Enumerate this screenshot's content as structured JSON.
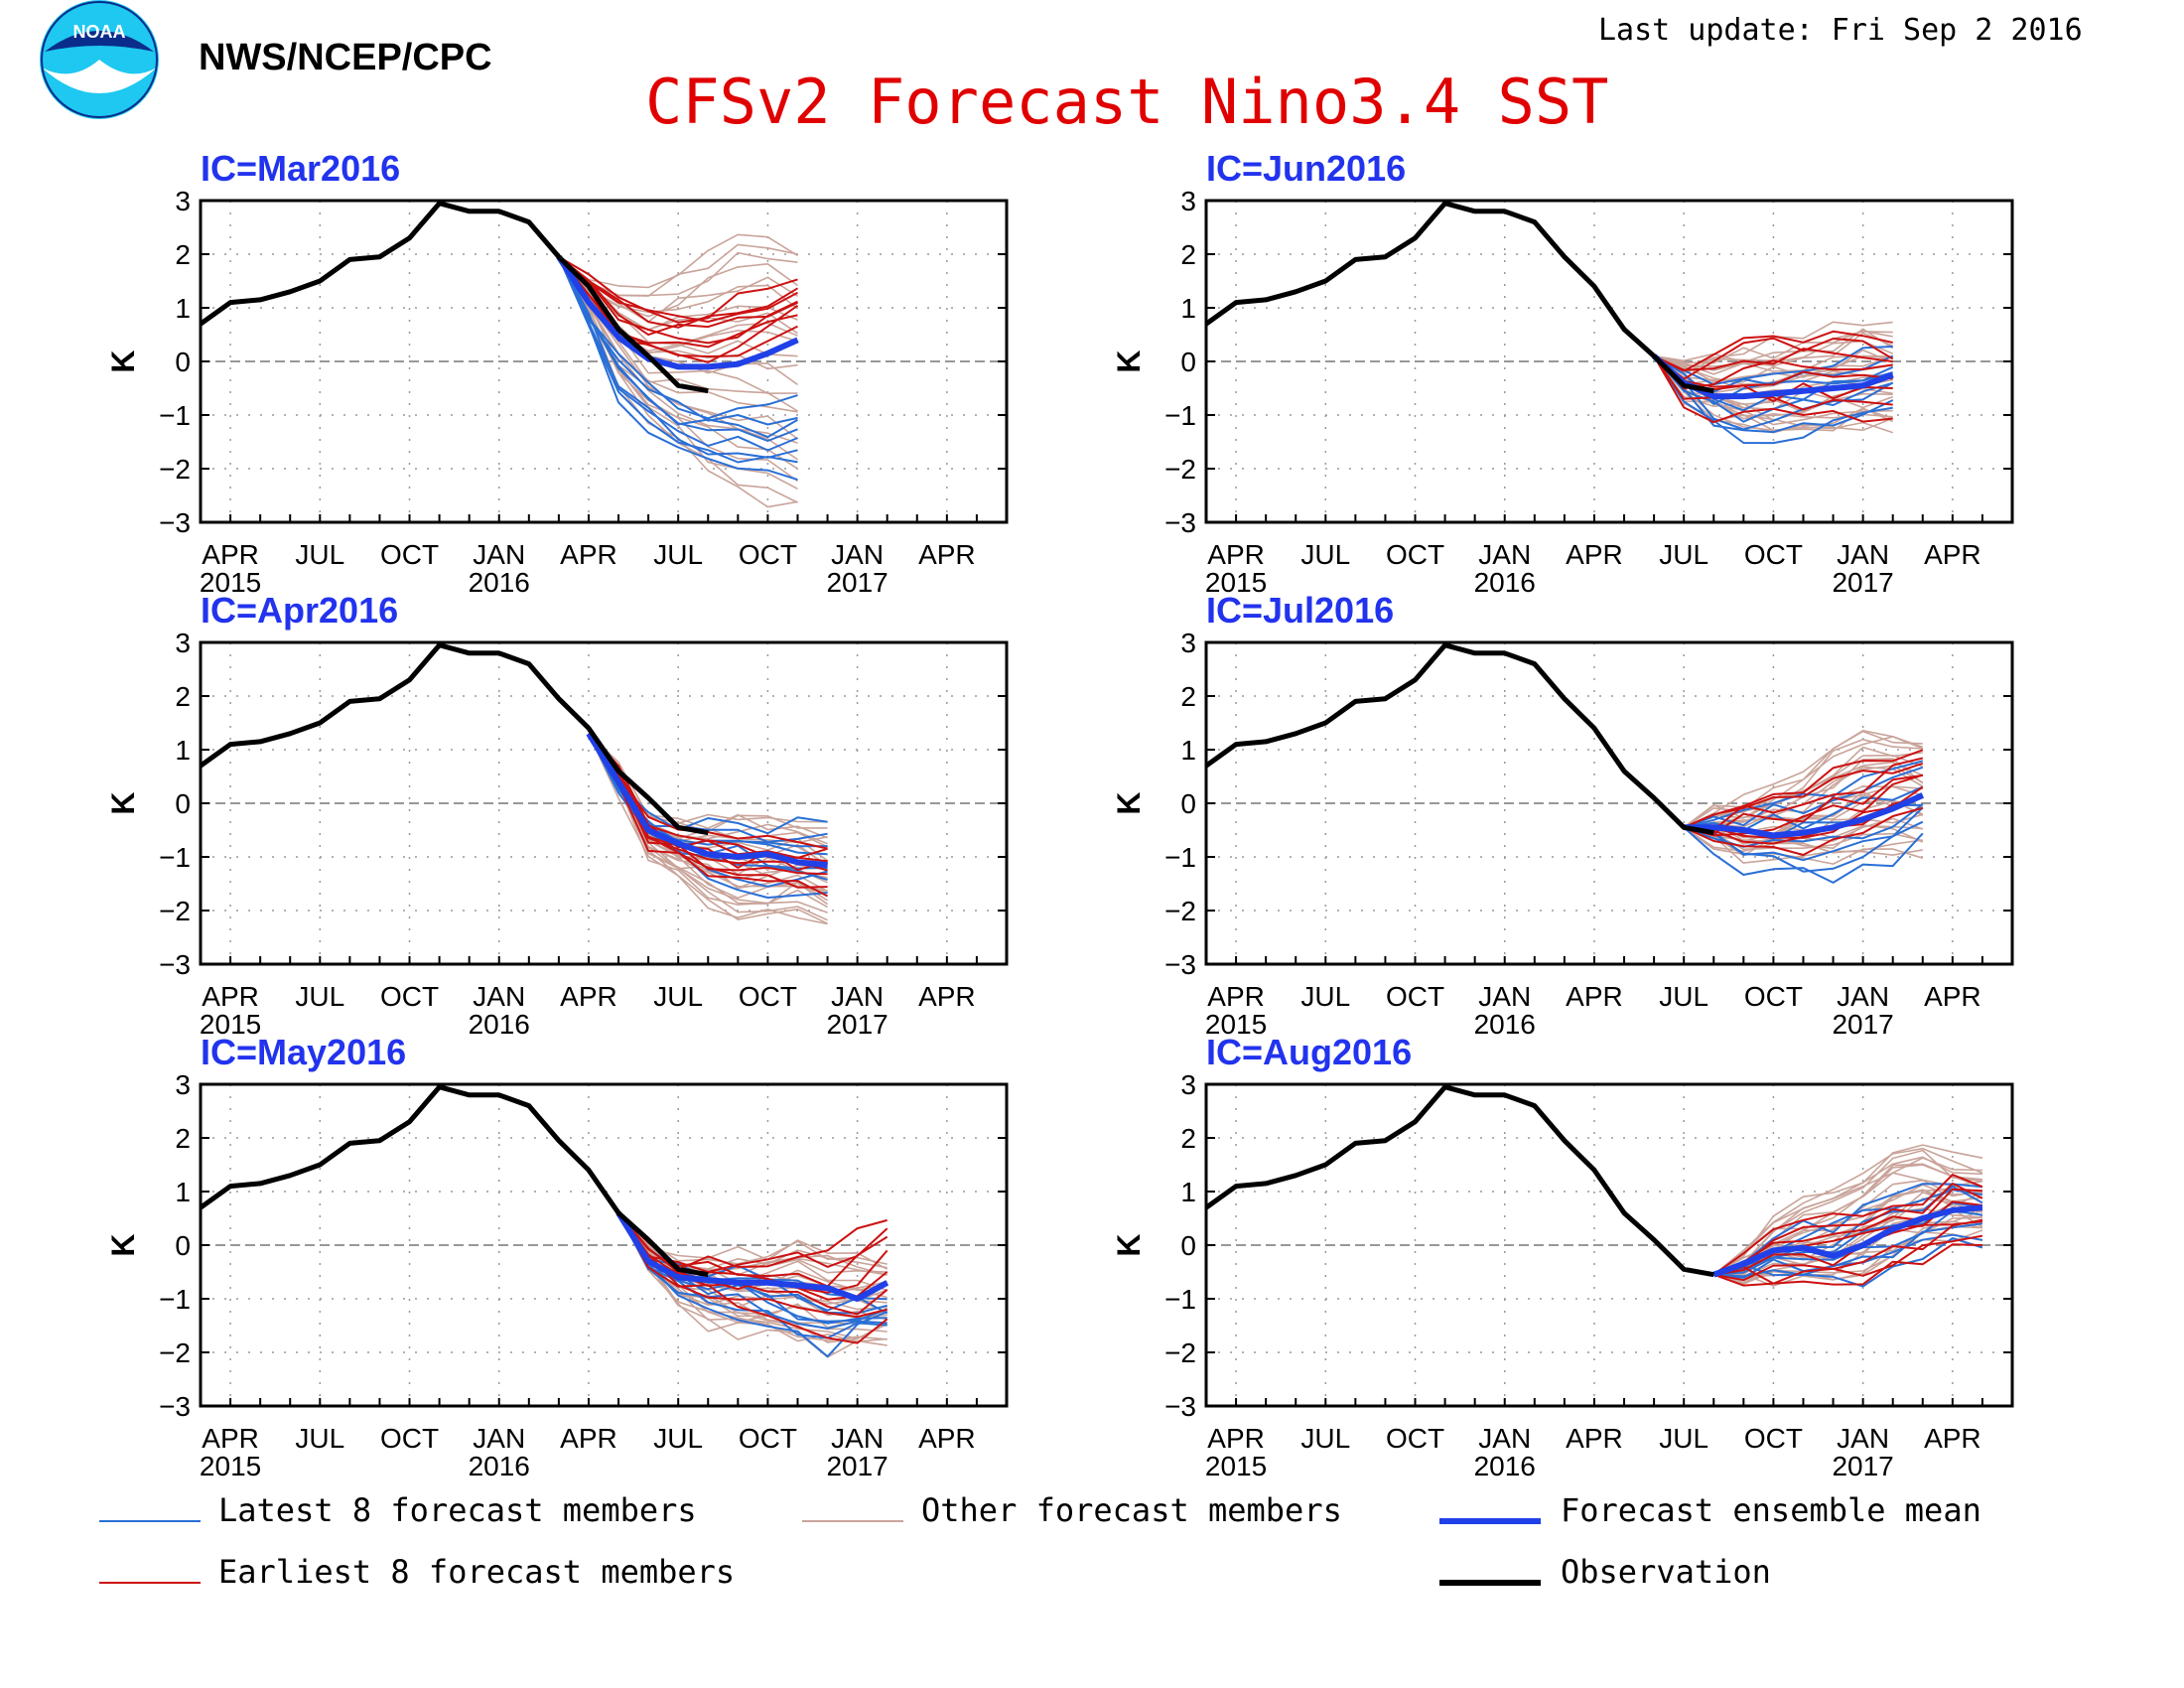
{
  "header": {
    "org": "NWS/NCEP/CPC",
    "last_update": "Last update: Fri Sep 2 2016",
    "title": "CFSv2 Forecast Nino3.4 SST",
    "logo_text": "NOAA"
  },
  "colors": {
    "title": "#e00000",
    "ic_label": "#2233ee",
    "latest_members": "#2a6fd6",
    "other_members": "#c9a49a",
    "earliest_members": "#cc1111",
    "ensemble_mean": "#2040e8",
    "observation": "#000000"
  },
  "legend": [
    {
      "label": "Latest 8 forecast members",
      "series": "latest"
    },
    {
      "label": "Other forecast members",
      "series": "other"
    },
    {
      "label": "Forecast ensemble mean",
      "series": "mean"
    },
    {
      "label": "Earliest 8 forecast members",
      "series": "earliest"
    },
    {
      "label": "Observation",
      "series": "obs"
    }
  ],
  "chart_data": {
    "type": "line",
    "ylabel": "K",
    "ylim": [
      -3,
      3
    ],
    "yticks": [
      "3",
      "2",
      "1",
      "0",
      "−1",
      "−2",
      "−3"
    ],
    "x_range": [
      "2015-03",
      "2017-06"
    ],
    "x_tick_labels": [
      {
        "month": "APR",
        "year": "2015",
        "date": "2015-04"
      },
      {
        "month": "JUL",
        "year": "",
        "date": "2015-07"
      },
      {
        "month": "OCT",
        "year": "",
        "date": "2015-10"
      },
      {
        "month": "JAN",
        "year": "2016",
        "date": "2016-01"
      },
      {
        "month": "APR",
        "year": "",
        "date": "2016-04"
      },
      {
        "month": "JUL",
        "year": "",
        "date": "2016-07"
      },
      {
        "month": "OCT",
        "year": "",
        "date": "2016-10"
      },
      {
        "month": "JAN",
        "year": "2017",
        "date": "2017-01"
      },
      {
        "month": "APR",
        "year": "",
        "date": "2017-04"
      }
    ],
    "observation": {
      "dates": [
        "2015-03",
        "2015-04",
        "2015-05",
        "2015-06",
        "2015-07",
        "2015-08",
        "2015-09",
        "2015-10",
        "2015-11",
        "2015-12",
        "2016-01",
        "2016-02",
        "2016-03",
        "2016-04",
        "2016-05",
        "2016-06",
        "2016-07",
        "2016-08"
      ],
      "values": [
        0.7,
        1.1,
        1.15,
        1.3,
        1.5,
        1.9,
        1.95,
        2.3,
        2.95,
        2.8,
        2.8,
        2.6,
        1.95,
        1.4,
        0.6,
        0.1,
        -0.45,
        -0.55
      ]
    },
    "panels": [
      {
        "ic_label": "IC=Mar2016",
        "forecast_start": "2016-03",
        "obs_end": "2016-08",
        "mean": [
          1.95,
          1.1,
          0.45,
          0.05,
          -0.1,
          -0.1,
          -0.05,
          0.15,
          0.4
        ],
        "latest_upper": [
          1.95,
          0.9,
          0.0,
          -0.5,
          -0.8,
          -1.0,
          -1.0,
          -0.9,
          -0.7
        ],
        "latest_lower": [
          1.95,
          0.6,
          -0.6,
          -1.2,
          -1.6,
          -1.8,
          -1.95,
          -2.1,
          -2.25
        ],
        "earliest_upper": [
          1.95,
          1.5,
          1.2,
          1.0,
          0.9,
          0.95,
          1.1,
          1.25,
          1.5
        ],
        "earliest_lower": [
          1.95,
          1.3,
          0.5,
          0.2,
          0.0,
          0.0,
          0.2,
          0.5,
          0.8
        ],
        "other_upper": [
          1.95,
          1.6,
          1.4,
          1.3,
          1.6,
          2.0,
          2.3,
          2.4,
          2.1
        ],
        "other_lower": [
          1.95,
          0.9,
          -0.4,
          -1.2,
          -1.6,
          -2.1,
          -2.4,
          -2.6,
          -2.75
        ]
      },
      {
        "ic_label": "IC=Jun2016",
        "forecast_start": "2016-06",
        "obs_end": "2016-08",
        "mean": [
          0.1,
          -0.4,
          -0.65,
          -0.65,
          -0.6,
          -0.55,
          -0.5,
          -0.45,
          -0.25
        ],
        "latest_upper": [
          0.1,
          -0.2,
          -0.4,
          -0.3,
          -0.2,
          -0.1,
          0.0,
          0.1,
          0.2
        ],
        "latest_lower": [
          0.1,
          -0.6,
          -1.2,
          -1.5,
          -1.5,
          -1.35,
          -1.2,
          -1.1,
          -0.8
        ],
        "earliest_upper": [
          0.1,
          -0.1,
          0.1,
          0.4,
          0.5,
          0.5,
          0.55,
          0.5,
          0.4
        ],
        "earliest_lower": [
          0.1,
          -0.8,
          -1.0,
          -1.0,
          -1.0,
          -1.0,
          -1.0,
          -0.95,
          -1.0
        ],
        "other_upper": [
          0.1,
          0.0,
          0.2,
          0.2,
          0.3,
          0.4,
          0.6,
          0.7,
          0.6
        ],
        "other_lower": [
          0.1,
          -0.7,
          -1.1,
          -1.3,
          -1.4,
          -1.4,
          -1.3,
          -1.2,
          -1.2
        ]
      },
      {
        "ic_label": "IC=Apr2016",
        "forecast_start": "2016-04",
        "obs_end": "2016-08",
        "mean": [
          1.3,
          0.4,
          -0.5,
          -0.75,
          -0.95,
          -1.0,
          -0.95,
          -1.1,
          -1.15
        ],
        "latest_upper": [
          1.3,
          0.5,
          -0.3,
          -0.4,
          -0.4,
          -0.2,
          -0.4,
          -0.4,
          -0.4
        ],
        "latest_lower": [
          1.3,
          0.3,
          -0.6,
          -1.0,
          -1.3,
          -1.5,
          -1.6,
          -1.7,
          -1.6
        ],
        "earliest_upper": [
          1.3,
          0.6,
          -0.3,
          -0.5,
          -0.6,
          -0.7,
          -0.6,
          -0.8,
          -0.9
        ],
        "earliest_lower": [
          1.3,
          0.4,
          -0.8,
          -1.1,
          -1.3,
          -1.5,
          -1.5,
          -1.6,
          -1.7
        ],
        "other_upper": [
          1.3,
          0.6,
          -0.2,
          -0.3,
          -0.3,
          -0.2,
          -0.3,
          -0.3,
          -0.4
        ],
        "other_lower": [
          1.3,
          0.2,
          -1.0,
          -1.5,
          -1.8,
          -2.2,
          -2.1,
          -2.0,
          -2.3
        ]
      },
      {
        "ic_label": "IC=Jul2016",
        "forecast_start": "2016-07",
        "obs_end": "2016-08",
        "mean": [
          -0.45,
          -0.45,
          -0.5,
          -0.6,
          -0.55,
          -0.45,
          -0.3,
          -0.1,
          0.15
        ],
        "latest_upper": [
          -0.45,
          -0.2,
          -0.1,
          0.0,
          0.1,
          0.2,
          0.4,
          0.6,
          0.7
        ],
        "latest_lower": [
          -0.45,
          -0.8,
          -1.2,
          -1.2,
          -1.3,
          -1.35,
          -1.2,
          -1.0,
          -0.6
        ],
        "earliest_upper": [
          -0.45,
          -0.2,
          0.0,
          0.3,
          0.3,
          0.7,
          0.8,
          0.9,
          1.0
        ],
        "earliest_lower": [
          -0.45,
          -0.7,
          -0.7,
          -0.8,
          -0.8,
          -0.8,
          -0.7,
          -0.3,
          0.0
        ],
        "other_upper": [
          -0.45,
          -0.1,
          0.0,
          0.2,
          0.5,
          1.0,
          1.5,
          1.4,
          1.2
        ],
        "other_lower": [
          -0.45,
          -0.7,
          -1.0,
          -1.0,
          -1.0,
          -1.1,
          -1.0,
          -0.9,
          -1.0
        ]
      },
      {
        "ic_label": "IC=May2016",
        "forecast_start": "2016-05",
        "obs_end": "2016-08",
        "mean": [
          0.6,
          -0.3,
          -0.6,
          -0.65,
          -0.7,
          -0.7,
          -0.75,
          -0.8,
          -1.0,
          -0.7
        ],
        "latest_upper": [
          0.6,
          -0.1,
          -0.4,
          -0.5,
          -0.4,
          -0.6,
          -0.8,
          -0.9,
          -1.0,
          -1.1
        ],
        "latest_lower": [
          0.6,
          -0.4,
          -0.9,
          -1.1,
          -1.3,
          -1.4,
          -1.7,
          -2.0,
          -1.5,
          -1.4
        ],
        "earliest_upper": [
          0.6,
          0.0,
          -0.3,
          -0.3,
          -0.3,
          -0.3,
          -0.1,
          -0.2,
          0.2,
          0.6
        ],
        "earliest_lower": [
          0.6,
          -0.4,
          -0.9,
          -0.9,
          -1.0,
          -1.2,
          -1.4,
          -1.6,
          -1.7,
          -1.3
        ],
        "other_upper": [
          0.6,
          0.0,
          -0.3,
          -0.2,
          -0.2,
          -0.1,
          0.0,
          -0.1,
          -0.2,
          -0.3
        ],
        "other_lower": [
          0.6,
          -0.4,
          -1.0,
          -1.5,
          -1.6,
          -1.7,
          -1.8,
          -2.0,
          -1.9,
          -1.8
        ]
      },
      {
        "ic_label": "IC=Aug2016",
        "forecast_start": "2016-08",
        "obs_end": "2016-08",
        "mean": [
          -0.55,
          -0.35,
          -0.1,
          -0.05,
          -0.2,
          0.0,
          0.3,
          0.5,
          0.65,
          0.7
        ],
        "latest_upper": [
          -0.55,
          -0.3,
          0.1,
          0.3,
          0.4,
          0.7,
          0.8,
          1.1,
          1.3,
          1.2
        ],
        "latest_lower": [
          -0.55,
          -0.5,
          -0.6,
          -0.7,
          -0.7,
          -0.6,
          -0.4,
          -0.2,
          0.0,
          0.1
        ],
        "earliest_upper": [
          -0.55,
          -0.2,
          0.2,
          0.5,
          0.5,
          0.6,
          0.8,
          0.9,
          1.3,
          1.2
        ],
        "earliest_lower": [
          -0.55,
          -0.6,
          -0.7,
          -0.8,
          -0.8,
          -0.6,
          -0.4,
          -0.3,
          0.0,
          0.1
        ],
        "other_upper": [
          -0.55,
          -0.2,
          0.4,
          0.8,
          1.0,
          1.3,
          1.8,
          1.9,
          1.6,
          1.5
        ],
        "other_lower": [
          -0.55,
          -0.6,
          -0.6,
          -0.7,
          -0.6,
          -0.5,
          -0.2,
          0.0,
          0.2,
          0.2
        ]
      }
    ]
  }
}
